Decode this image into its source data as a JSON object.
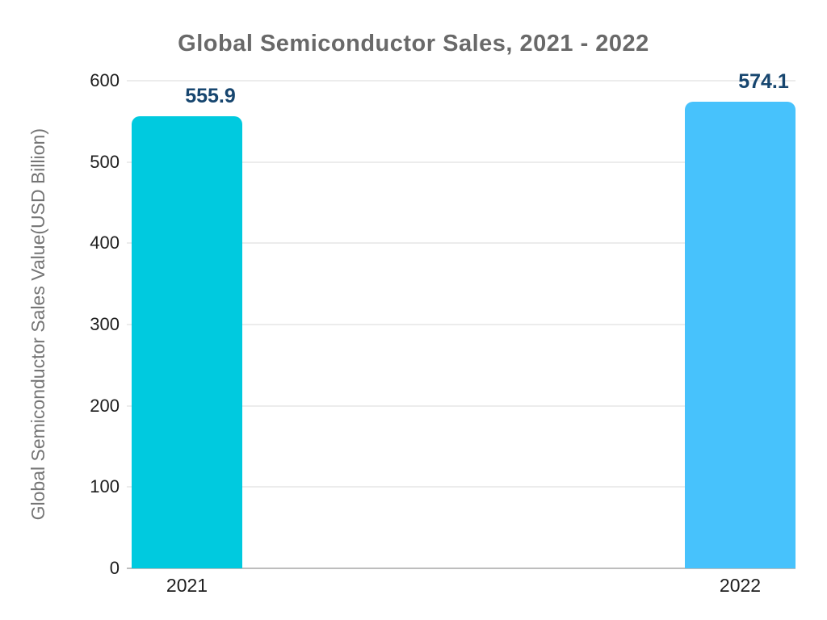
{
  "chart_data": {
    "type": "bar",
    "title": "Global Semiconductor Sales, 2021 - 2022",
    "ylabel": "Global Semiconductor Sales Value(USD Billion)",
    "xlabel": "",
    "categories": [
      "2021",
      "2022"
    ],
    "values": [
      555.9,
      574.1
    ],
    "value_labels": [
      "555.9",
      "574.1"
    ],
    "bar_colors": [
      "#00CADF",
      "#47C2FC"
    ],
    "ylim": [
      0,
      600
    ],
    "yticks": [
      0,
      100,
      200,
      300,
      400,
      500,
      600
    ],
    "grid": true,
    "legend_position": "none",
    "colors": {
      "title": "#696969",
      "axis_label": "#757575",
      "tick_label": "#1d1d1d",
      "value_label": "#17466F",
      "gridline": "#ececec",
      "baseline": "#bdbdbd",
      "background": "#ffffff"
    }
  }
}
